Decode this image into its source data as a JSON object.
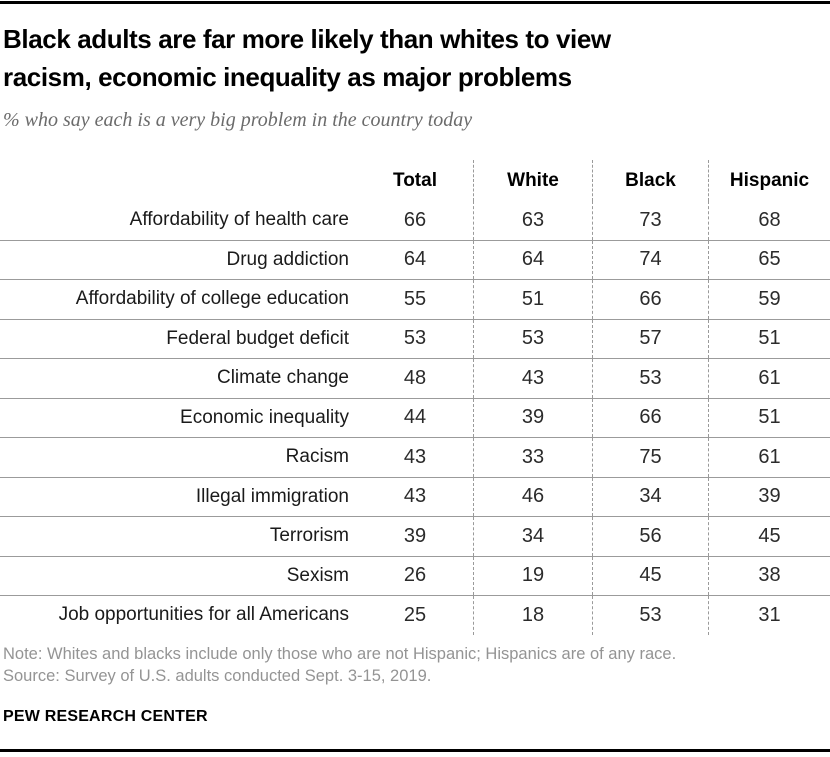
{
  "page": {
    "title_lines": [
      "Black adults are far more likely than whites to view",
      "racism, economic inequality as major problems"
    ]
  },
  "chart_data": {
    "type": "table",
    "title": "Black adults are far more likely than whites to view racism, economic inequality as major problems",
    "subtitle": "% who say each is a very big problem in the country today",
    "columns": [
      "Total",
      "White",
      "Black",
      "Hispanic"
    ],
    "rows": [
      {
        "label": "Affordability of health care",
        "values": [
          66,
          63,
          73,
          68
        ]
      },
      {
        "label": "Drug addiction",
        "values": [
          64,
          64,
          74,
          65
        ]
      },
      {
        "label": "Affordability of college education",
        "values": [
          55,
          51,
          66,
          59
        ]
      },
      {
        "label": "Federal budget deficit",
        "values": [
          53,
          53,
          57,
          51
        ]
      },
      {
        "label": "Climate change",
        "values": [
          48,
          43,
          53,
          61
        ]
      },
      {
        "label": "Economic inequality",
        "values": [
          44,
          39,
          66,
          51
        ]
      },
      {
        "label": "Racism",
        "values": [
          43,
          33,
          75,
          61
        ]
      },
      {
        "label": "Illegal immigration",
        "values": [
          43,
          46,
          34,
          39
        ]
      },
      {
        "label": "Terrorism",
        "values": [
          39,
          34,
          56,
          45
        ]
      },
      {
        "label": "Sexism",
        "values": [
          26,
          19,
          45,
          38
        ]
      },
      {
        "label": "Job opportunities for all Americans",
        "values": [
          25,
          18,
          53,
          31
        ]
      }
    ],
    "note": "Note: Whites and blacks include only those who are not Hispanic; Hispanics are of any race.",
    "source": "Source: Survey of U.S. adults conducted Sept. 3-15, 2019.",
    "branding": "PEW RESEARCH CENTER",
    "layout_hints": {
      "grid": "off",
      "legend_position": "none",
      "value_unit": "percent"
    },
    "colors": {
      "title_text": "#000000",
      "subtitle_gray": "#6b6b6b",
      "note_gray": "#949494",
      "rule_black": "#000000",
      "separator_gray": "#9b9b9b"
    }
  }
}
